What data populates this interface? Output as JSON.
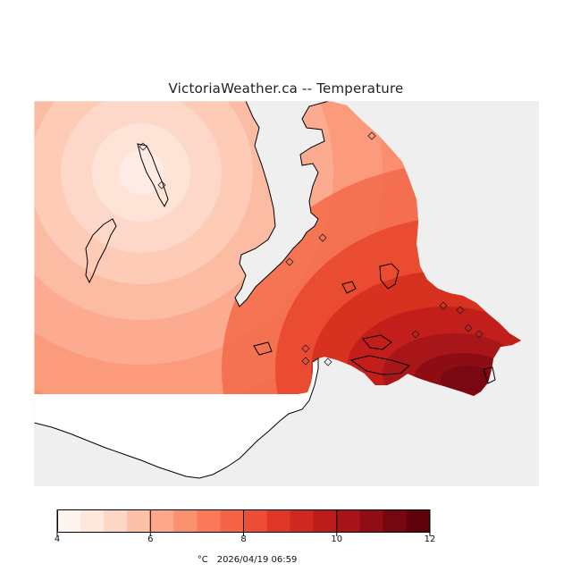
{
  "title": "VictoriaWeather.ca -- Temperature",
  "map": {
    "land_color": "#ffffff",
    "no_data_color": "#efefef",
    "coastline_color": "#000000",
    "station_marker": "diamond"
  },
  "colorbar": {
    "min": 4,
    "max": 12,
    "step": 0.5,
    "colors": [
      "#fff5f0",
      "#fee7dd",
      "#fdd6c6",
      "#fcbfa8",
      "#fca78a",
      "#fc916f",
      "#fb7858",
      "#f66447",
      "#ee4d37",
      "#e03628",
      "#ce2821",
      "#bc1b1b",
      "#a81419",
      "#910d15",
      "#750711",
      "#5e030c"
    ],
    "ticks": [
      "4",
      "6",
      "8",
      "10",
      "12"
    ],
    "tick_values": [
      4,
      6,
      8,
      10,
      12
    ]
  },
  "caption": {
    "unit": "°C",
    "timestamp": "2026/04/19 06:59"
  }
}
